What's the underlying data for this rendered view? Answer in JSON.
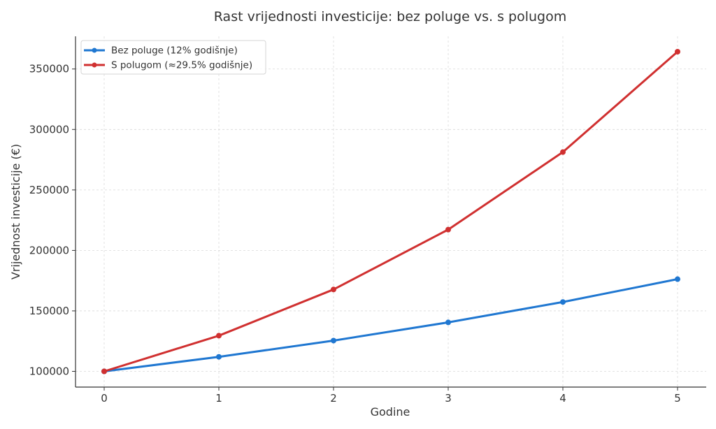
{
  "chart_data": {
    "type": "line",
    "title": "Rast vrijednosti investicije: bez poluge vs. s polugom",
    "xlabel": "Godine",
    "ylabel": "Vrijednost investicije (€)",
    "x": [
      0,
      1,
      2,
      3,
      4,
      5
    ],
    "xticks": [
      "0",
      "1",
      "2",
      "3",
      "4",
      "5"
    ],
    "yticks": [
      100000,
      150000,
      200000,
      250000,
      300000,
      350000
    ],
    "ytick_labels": [
      "100000",
      "150000",
      "200000",
      "250000",
      "300000",
      "350000"
    ],
    "xlim": [
      -0.25,
      5.25
    ],
    "ylim": [
      87000,
      377000
    ],
    "grid": true,
    "legend_position": "top-left",
    "series": [
      {
        "name": "Bez poluge (12% godišnje)",
        "color": "#1f77d1",
        "values": [
          100000,
          112000,
          125440,
          140493,
          157352,
          176234
        ]
      },
      {
        "name": "S polugom (≈29.5% godišnje)",
        "color": "#d03030",
        "values": [
          100000,
          129500,
          167700,
          217200,
          281300,
          364300
        ]
      }
    ]
  }
}
